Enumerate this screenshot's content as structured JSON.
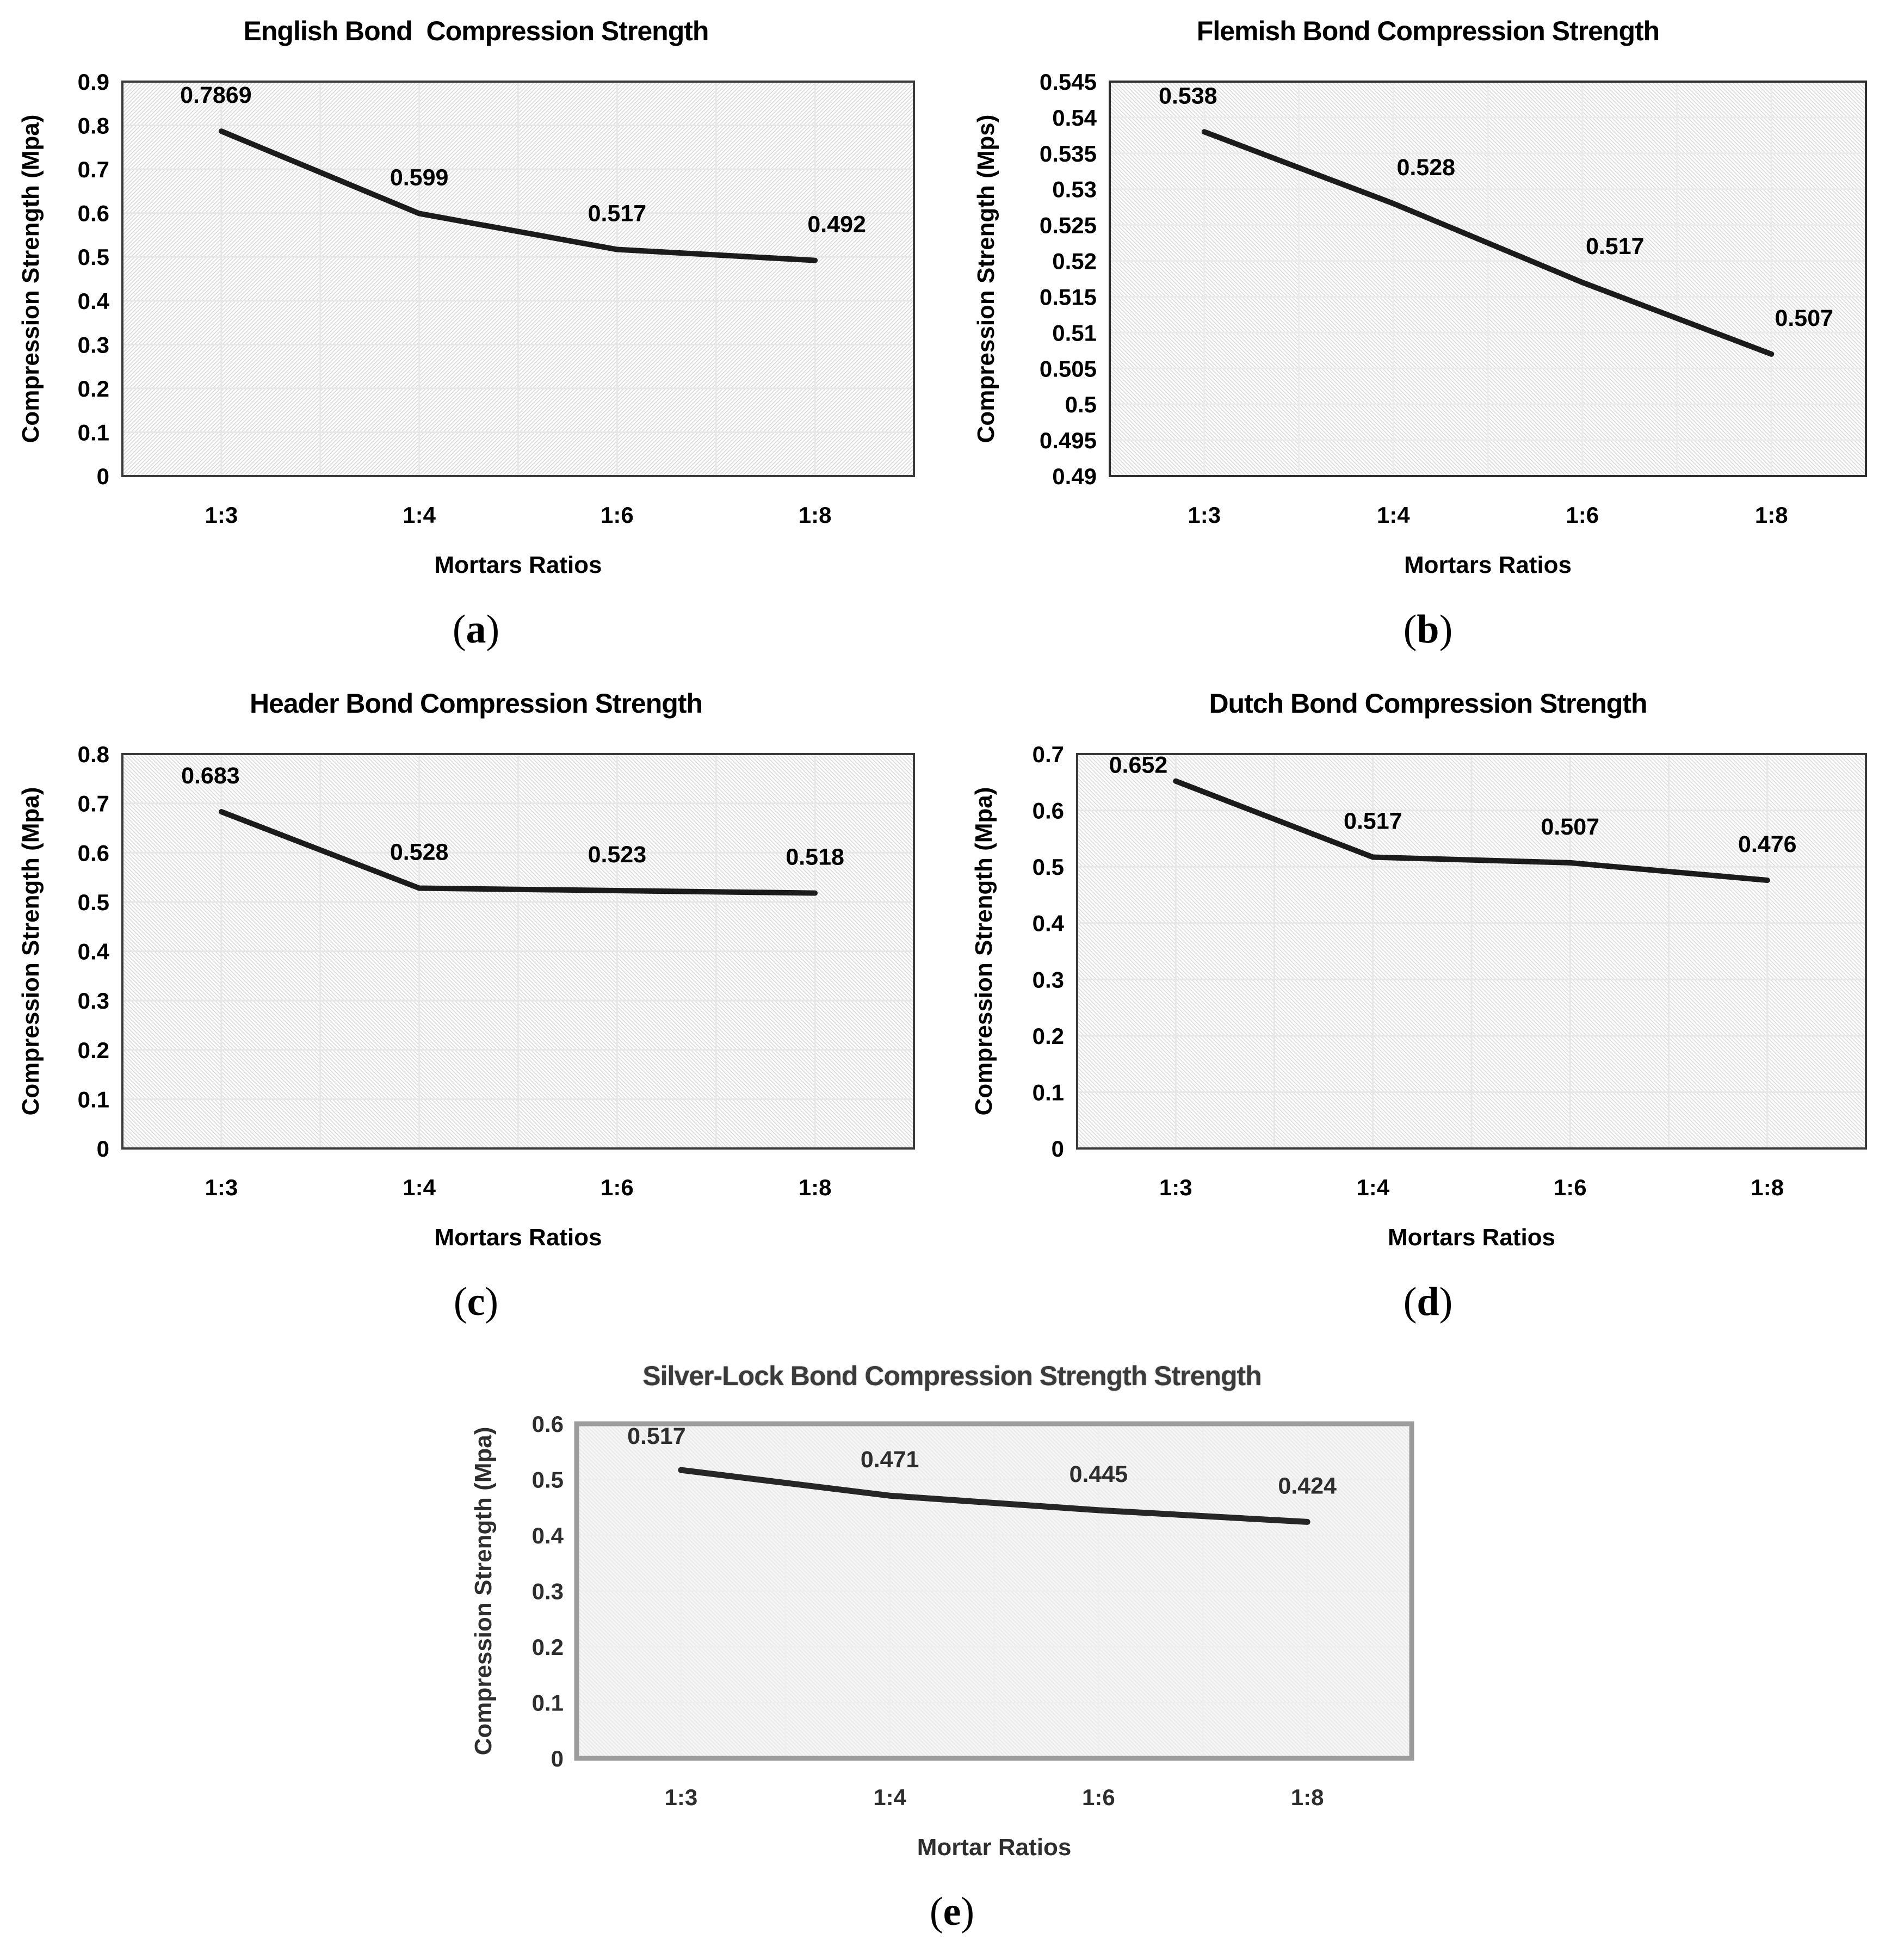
{
  "colors": {
    "series_line": "#1b1b1b",
    "plot_border_dark": "#3a3a3a",
    "plot_border_gray": "#9c9c9c",
    "gridline": "#e7e7e7",
    "hatch": "#d9d9d9",
    "text": "#000000",
    "background": "#ffffff"
  },
  "chart_data": [
    {
      "id": "a",
      "type": "line",
      "title": "English Bond  Compression Strength",
      "ylabel": "Compression Strength (Mpa)",
      "xlabel": "Mortars Ratios",
      "categories": [
        "1:3",
        "1:4",
        "1:6",
        "1:8"
      ],
      "values": [
        0.7869,
        0.599,
        0.517,
        0.492
      ],
      "point_labels": [
        "0.7869",
        "0.599",
        "0.517",
        "0.492"
      ],
      "ymin": 0,
      "ymax": 0.9,
      "yticks": [
        "0.9",
        "0.8",
        "0.7",
        "0.6",
        "0.5",
        "0.4",
        "0.3",
        "0.2",
        "0.1",
        "0"
      ],
      "grid": "on",
      "legend": "none",
      "caption_open": "(",
      "caption_letter": "a",
      "caption_close": ")"
    },
    {
      "id": "b",
      "type": "line",
      "title": "Flemish Bond Compression Strength",
      "ylabel": "Compression Strength (Mps)",
      "xlabel": "Mortars Ratios",
      "categories": [
        "1:3",
        "1:4",
        "1:6",
        "1:8"
      ],
      "values": [
        0.538,
        0.528,
        0.517,
        0.507
      ],
      "point_labels": [
        "0.538",
        "0.528",
        "0.517",
        "0.507"
      ],
      "ymin": 0.49,
      "ymax": 0.545,
      "yticks": [
        "0.545",
        "0.54",
        "0.535",
        "0.53",
        "0.525",
        "0.52",
        "0.515",
        "0.51",
        "0.505",
        "0.5",
        "0.495",
        "0.49"
      ],
      "grid": "on",
      "legend": "none",
      "caption_open": "(",
      "caption_letter": "b",
      "caption_close": ")"
    },
    {
      "id": "c",
      "type": "line",
      "title": "Header Bond Compression Strength",
      "ylabel": "Compression Strength (Mpa)",
      "xlabel": "Mortars Ratios",
      "categories": [
        "1:3",
        "1:4",
        "1:6",
        "1:8"
      ],
      "values": [
        0.683,
        0.528,
        0.523,
        0.518
      ],
      "point_labels": [
        "0.683",
        "0.528",
        "0.523",
        "0.518"
      ],
      "ymin": 0,
      "ymax": 0.8,
      "yticks": [
        "0.8",
        "0.7",
        "0.6",
        "0.5",
        "0.4",
        "0.3",
        "0.2",
        "0.1",
        "0"
      ],
      "grid": "on",
      "legend": "none",
      "caption_open": "(",
      "caption_letter": "c",
      "caption_close": ")"
    },
    {
      "id": "d",
      "type": "line",
      "title": "Dutch Bond Compression Strength",
      "ylabel": "Compression Strength (Mpa)",
      "xlabel": "Mortars Ratios",
      "categories": [
        "1:3",
        "1:4",
        "1:6",
        "1:8"
      ],
      "values": [
        0.652,
        0.517,
        0.507,
        0.476
      ],
      "point_labels": [
        "0.652",
        "0.517",
        "0.507",
        "0.476"
      ],
      "ymin": 0,
      "ymax": 0.7,
      "yticks": [
        "0.7",
        "0.6",
        "0.5",
        "0.4",
        "0.3",
        "0.2",
        "0.1",
        "0"
      ],
      "grid": "on",
      "legend": "none",
      "caption_open": "(",
      "caption_letter": "d",
      "caption_close": ")"
    },
    {
      "id": "e",
      "type": "line",
      "title": "Silver-Lock Bond Compression Strength Strength",
      "ylabel": "Compression Strength (Mpa)",
      "xlabel": "Mortar Ratios",
      "categories": [
        "1:3",
        "1:4",
        "1:6",
        "1:8"
      ],
      "values": [
        0.517,
        0.471,
        0.445,
        0.424
      ],
      "point_labels": [
        "0.517",
        "0.471",
        "0.445",
        "0.424"
      ],
      "ymin": 0,
      "ymax": 0.6,
      "yticks": [
        "0.6",
        "0.5",
        "0.4",
        "0.3",
        "0.2",
        "0.1",
        "0"
      ],
      "grid": "on",
      "legend": "none",
      "caption_open": "(",
      "caption_letter": "e",
      "caption_close": ")"
    }
  ]
}
